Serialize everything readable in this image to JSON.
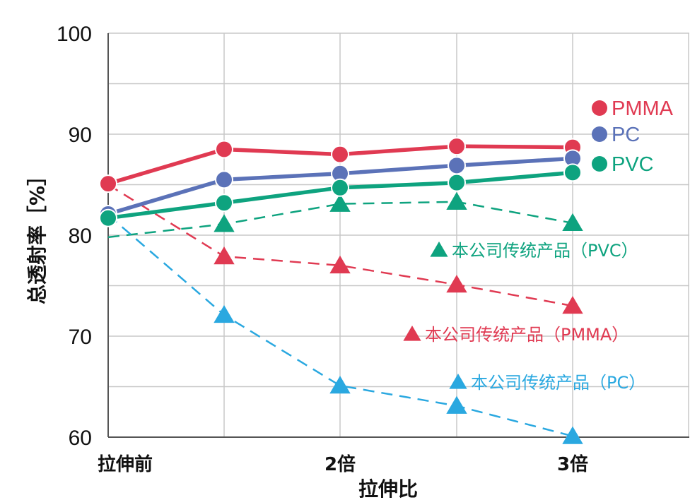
{
  "chart_data": {
    "type": "line",
    "xlabel": "拉伸比",
    "ylabel": "总透射率［%］",
    "ylim": [
      60,
      100
    ],
    "yticks": [
      "60",
      "70",
      "80",
      "90",
      "100"
    ],
    "xticks": [
      "拉伸前",
      "",
      "2倍",
      "",
      "3倍"
    ],
    "x_positions": [
      "拉伸前",
      "1.5倍",
      "2倍",
      "2.5倍",
      "3倍"
    ],
    "grid": true,
    "legend_position": "right",
    "series": [
      {
        "name": "PMMA",
        "color": "#e03a52",
        "marker": "circle",
        "style": "solid",
        "values": [
          85.1,
          88.5,
          88.0,
          88.8,
          88.7
        ]
      },
      {
        "name": "PC",
        "color": "#5b72b8",
        "marker": "circle",
        "style": "solid",
        "values": [
          82.1,
          85.5,
          86.1,
          86.9,
          87.6
        ]
      },
      {
        "name": "PVC",
        "color": "#0ea37f",
        "marker": "circle",
        "style": "solid",
        "values": [
          81.7,
          83.2,
          84.7,
          85.2,
          86.2
        ]
      },
      {
        "name": "本公司传统产品（PVC）",
        "color": "#0ea37f",
        "marker": "triangle",
        "style": "dashed",
        "values": [
          79.8,
          81.1,
          83.1,
          83.3,
          81.2
        ]
      },
      {
        "name": "本公司传统产品（PMMA）",
        "color": "#e03a52",
        "marker": "triangle",
        "style": "dashed",
        "values": [
          85.0,
          77.9,
          77.0,
          75.1,
          73.0
        ]
      },
      {
        "name": "本公司传统产品（PC）",
        "color": "#2aa8e0",
        "marker": "triangle",
        "style": "dashed",
        "values": [
          82.0,
          72.1,
          65.1,
          63.1,
          60.1
        ]
      }
    ]
  }
}
